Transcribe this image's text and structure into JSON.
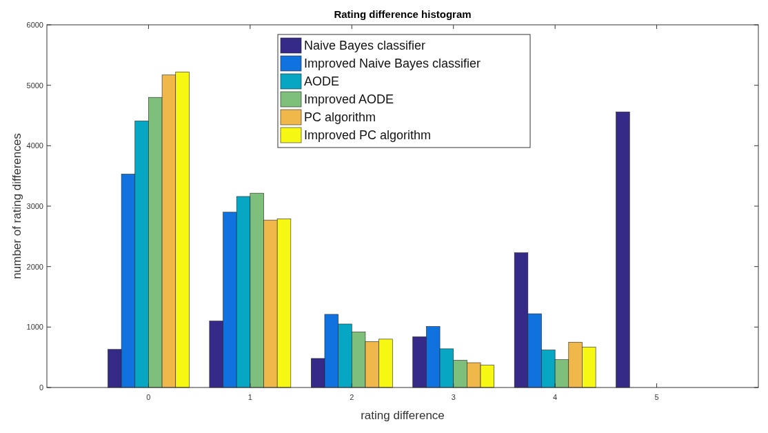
{
  "chart_data": {
    "type": "bar",
    "title": "Rating difference histogram",
    "xlabel": "rating difference",
    "ylabel": "number of rating differences",
    "x": [
      0,
      1,
      2,
      3,
      4,
      5
    ],
    "xlim": [
      -1,
      6
    ],
    "xticks": [
      0,
      1,
      2,
      3,
      4,
      5
    ],
    "ylim": [
      0,
      6000
    ],
    "yticks": [
      0,
      1000,
      2000,
      3000,
      4000,
      5000,
      6000
    ],
    "series": [
      {
        "name": "Naive Bayes classifier",
        "color": "#352a87",
        "values": [
          630,
          1100,
          480,
          840,
          2230,
          4560
        ]
      },
      {
        "name": "Improved Naive Bayes classifier",
        "color": "#0f72de",
        "values": [
          3530,
          2900,
          1210,
          1010,
          1220,
          0
        ]
      },
      {
        "name": "AODE",
        "color": "#07a7c3",
        "values": [
          4410,
          3160,
          1050,
          640,
          620,
          0
        ]
      },
      {
        "name": "Improved AODE",
        "color": "#7dbf7b",
        "values": [
          4800,
          3215,
          920,
          450,
          460,
          0
        ]
      },
      {
        "name": "PC algorithm",
        "color": "#f0b84a",
        "values": [
          5170,
          2770,
          760,
          410,
          750,
          0
        ]
      },
      {
        "name": "Improved PC algorithm",
        "color": "#f7f714",
        "values": [
          5220,
          2790,
          800,
          370,
          670,
          0
        ]
      }
    ],
    "grid": false,
    "legend": "top"
  }
}
